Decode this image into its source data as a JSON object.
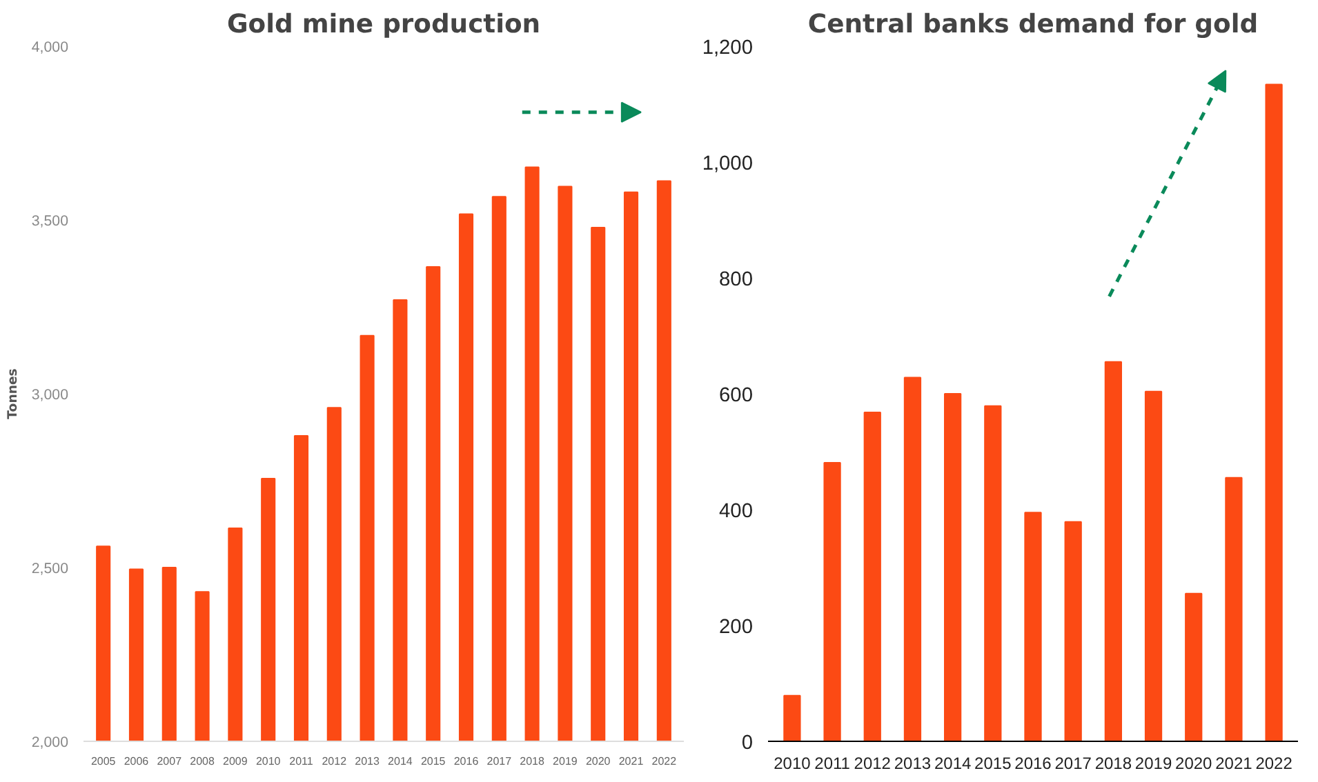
{
  "chart_data": [
    {
      "type": "bar",
      "title": "Gold mine production",
      "ylabel": "Tonnes",
      "categories": [
        "2005",
        "2006",
        "2007",
        "2008",
        "2009",
        "2010",
        "2011",
        "2012",
        "2013",
        "2014",
        "2015",
        "2016",
        "2017",
        "2018",
        "2019",
        "2020",
        "2021",
        "2022"
      ],
      "values": [
        2561,
        2495,
        2500,
        2430,
        2613,
        2756,
        2879,
        2960,
        3167,
        3270,
        3365,
        3517,
        3567,
        3652,
        3596,
        3478,
        3580,
        3612
      ],
      "color": "#fc4a14",
      "ylim": [
        2000,
        4000
      ],
      "yticks": [
        {
          "value": 2000,
          "label": "2,000"
        },
        {
          "value": 2500,
          "label": "2,500"
        },
        {
          "value": 3000,
          "label": "3,000"
        },
        {
          "value": 3500,
          "label": "3,500"
        },
        {
          "value": 4000,
          "label": "4,000"
        }
      ],
      "grid": false
    },
    {
      "type": "bar",
      "title": "Central banks demand for gold",
      "categories": [
        "2010",
        "2011",
        "2012",
        "2013",
        "2014",
        "2015",
        "2016",
        "2017",
        "2018",
        "2019",
        "2020",
        "2021",
        "2022"
      ],
      "values": [
        79,
        481,
        568,
        628,
        600,
        579,
        395,
        379,
        655,
        604,
        255,
        455,
        1134
      ],
      "color": "#fc4a14",
      "ylim": [
        0,
        1200
      ],
      "yticks": [
        0,
        200,
        400,
        600,
        800,
        {
          "value": 1000,
          "label": "1,000"
        },
        {
          "value": 1200,
          "label": "1,200"
        }
      ],
      "grid": false
    }
  ]
}
